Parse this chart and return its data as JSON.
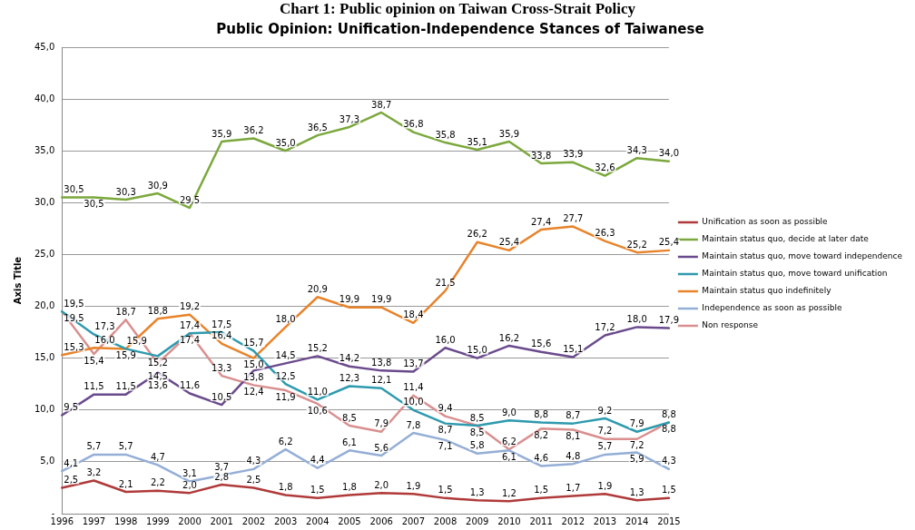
{
  "chart_data": {
    "type": "line",
    "title": "Public Opinion: Unification-Independence Stances of Taiwanese",
    "ylabel": "Axis Title",
    "annotations": [
      "Chart 1: Public opinion on Taiwan Cross-Strait Policy"
    ],
    "categories": [
      "1996",
      "1997",
      "1998",
      "1999",
      "2000",
      "2001",
      "2002",
      "2003",
      "2004",
      "2005",
      "2006",
      "2007",
      "2008",
      "2009",
      "2010",
      "2011",
      "2012",
      "2013",
      "2014",
      "2015"
    ],
    "ylim": [
      0,
      45
    ],
    "yticks": [
      {
        "value": 0,
        "label": "-"
      },
      {
        "value": 5,
        "label": "5,0"
      },
      {
        "value": 10,
        "label": "10,0"
      },
      {
        "value": 15,
        "label": "15,0"
      },
      {
        "value": 20,
        "label": "20,0"
      },
      {
        "value": 25,
        "label": "25,0"
      },
      {
        "value": 30,
        "label": "30,0"
      },
      {
        "value": 35,
        "label": "35,0"
      },
      {
        "value": 40,
        "label": "40,0"
      },
      {
        "value": 45,
        "label": "45,0"
      }
    ],
    "grid": "y",
    "legend": "right",
    "marker": "none",
    "line_style": "solid",
    "series": [
      {
        "name": "Unification as soon as possible",
        "color": "#b03a3a",
        "values": [
          2.5,
          3.2,
          2.1,
          2.2,
          2.0,
          2.8,
          2.5,
          1.8,
          1.5,
          1.8,
          2.0,
          1.9,
          1.5,
          1.3,
          1.2,
          1.5,
          1.7,
          1.9,
          1.3,
          1.5
        ],
        "value_labels": [
          "2,5",
          "3,2",
          "2,1",
          "2,2",
          "2,0",
          "2,8",
          "2,5",
          "1,8",
          "1,5",
          "1,8",
          "2,0",
          "1,9",
          "1,5",
          "1,3",
          "1,2",
          "1,5",
          "1,7",
          "1,9",
          "1,3",
          "1,5"
        ]
      },
      {
        "name": "Maintain status quo, decide at later date",
        "color": "#7ba83c",
        "values": [
          30.5,
          30.5,
          30.3,
          30.9,
          29.5,
          35.9,
          36.2,
          35.0,
          36.5,
          37.3,
          38.7,
          36.8,
          35.8,
          35.1,
          35.9,
          33.8,
          33.9,
          32.6,
          34.3,
          34.0
        ],
        "value_labels": [
          "30,5",
          "30,5",
          "30,3",
          "30,9",
          "29,5",
          "35,9",
          "36,2",
          "35,0",
          "36,5",
          "37,3",
          "38,7",
          "36,8",
          "35,8",
          "35,1",
          "35,9",
          "33,8",
          "33,9",
          "32,6",
          "34,3",
          "34,0"
        ]
      },
      {
        "name": "Maintain status quo, move toward independence",
        "color": "#6a4a8c",
        "values": [
          9.5,
          11.5,
          11.5,
          13.6,
          11.6,
          10.5,
          13.8,
          14.5,
          15.2,
          14.2,
          13.8,
          13.7,
          16.0,
          15.0,
          16.2,
          15.6,
          15.1,
          17.2,
          18.0,
          17.9
        ],
        "value_labels": [
          "9,5",
          "11,5",
          "11,5",
          "13,6",
          "11,6",
          "10,5",
          "13,8",
          "14,5",
          "15,2",
          "14,2",
          "13,8",
          "13,7",
          "16,0",
          "15,0",
          "16,2",
          "15,6",
          "15,1",
          "17,2",
          "18,0",
          "17,9"
        ]
      },
      {
        "name": "Maintain status quo, move toward unification",
        "color": "#2e9aae",
        "values": [
          19.5,
          17.3,
          15.9,
          15.2,
          17.4,
          17.5,
          15.7,
          12.5,
          11.0,
          12.3,
          12.1,
          10.0,
          8.7,
          8.5,
          9.0,
          8.8,
          8.7,
          9.2,
          7.9,
          8.8
        ],
        "value_labels": [
          "19,5",
          "17,3",
          "15,9",
          "15,2",
          "17,4",
          "17,5",
          "15,7",
          "12,5",
          "11,0",
          "12,3",
          "12,1",
          "10,0",
          "8,7",
          "8,5",
          "9,0",
          "8,8",
          "8,7",
          "9,2",
          "7,9",
          "8,8"
        ]
      },
      {
        "name": "Maintain status quo indefinitely",
        "color": "#e8832a",
        "values": [
          15.3,
          16.0,
          15.9,
          18.8,
          19.2,
          16.4,
          15.0,
          18.0,
          20.9,
          19.9,
          19.9,
          18.4,
          21.5,
          26.2,
          25.4,
          27.4,
          27.7,
          26.3,
          25.2,
          25.4
        ],
        "value_labels": [
          "15,3",
          "16,0",
          "15,9",
          "18,8",
          "19,2",
          "16,4",
          "15,0",
          "18,0",
          "20,9",
          "19,9",
          "19,9",
          "18,4",
          "21,5",
          "26,2",
          "25,4",
          "27,4",
          "27,7",
          "26,3",
          "25,2",
          "25,4"
        ]
      },
      {
        "name": "Independence as soon as possible",
        "color": "#94aed6",
        "values": [
          4.1,
          5.7,
          5.7,
          4.7,
          3.1,
          3.7,
          4.3,
          6.2,
          4.4,
          6.1,
          5.6,
          7.8,
          7.1,
          5.8,
          6.1,
          4.6,
          4.8,
          5.7,
          5.9,
          4.3
        ],
        "value_labels": [
          "4,1",
          "5,7",
          "5,7",
          "4,7",
          "3,1",
          "3,7",
          "4,3",
          "6,2",
          "4,4",
          "6,1",
          "5,6",
          "7,8",
          "7,1",
          "5,8",
          "6,1",
          "4,6",
          "4,8",
          "5,7",
          "5,9",
          "4,3"
        ]
      },
      {
        "name": "Non response",
        "color": "#d98f8f",
        "values": [
          19.5,
          15.4,
          18.7,
          14.5,
          17.4,
          13.3,
          12.4,
          11.9,
          10.6,
          8.5,
          7.9,
          11.4,
          9.4,
          8.5,
          6.2,
          8.2,
          8.1,
          7.2,
          7.2,
          8.8
        ],
        "value_labels": [
          "19,5",
          "15,4",
          "18,7",
          "14,5",
          "17,4",
          "13,3",
          "12,4",
          "11,9",
          "10,6",
          "8,5",
          "7,9",
          "11,4",
          "9,4",
          "8,5",
          "6,2",
          "8,2",
          "8,1",
          "7,2",
          "7,2",
          "8,8"
        ]
      }
    ]
  }
}
